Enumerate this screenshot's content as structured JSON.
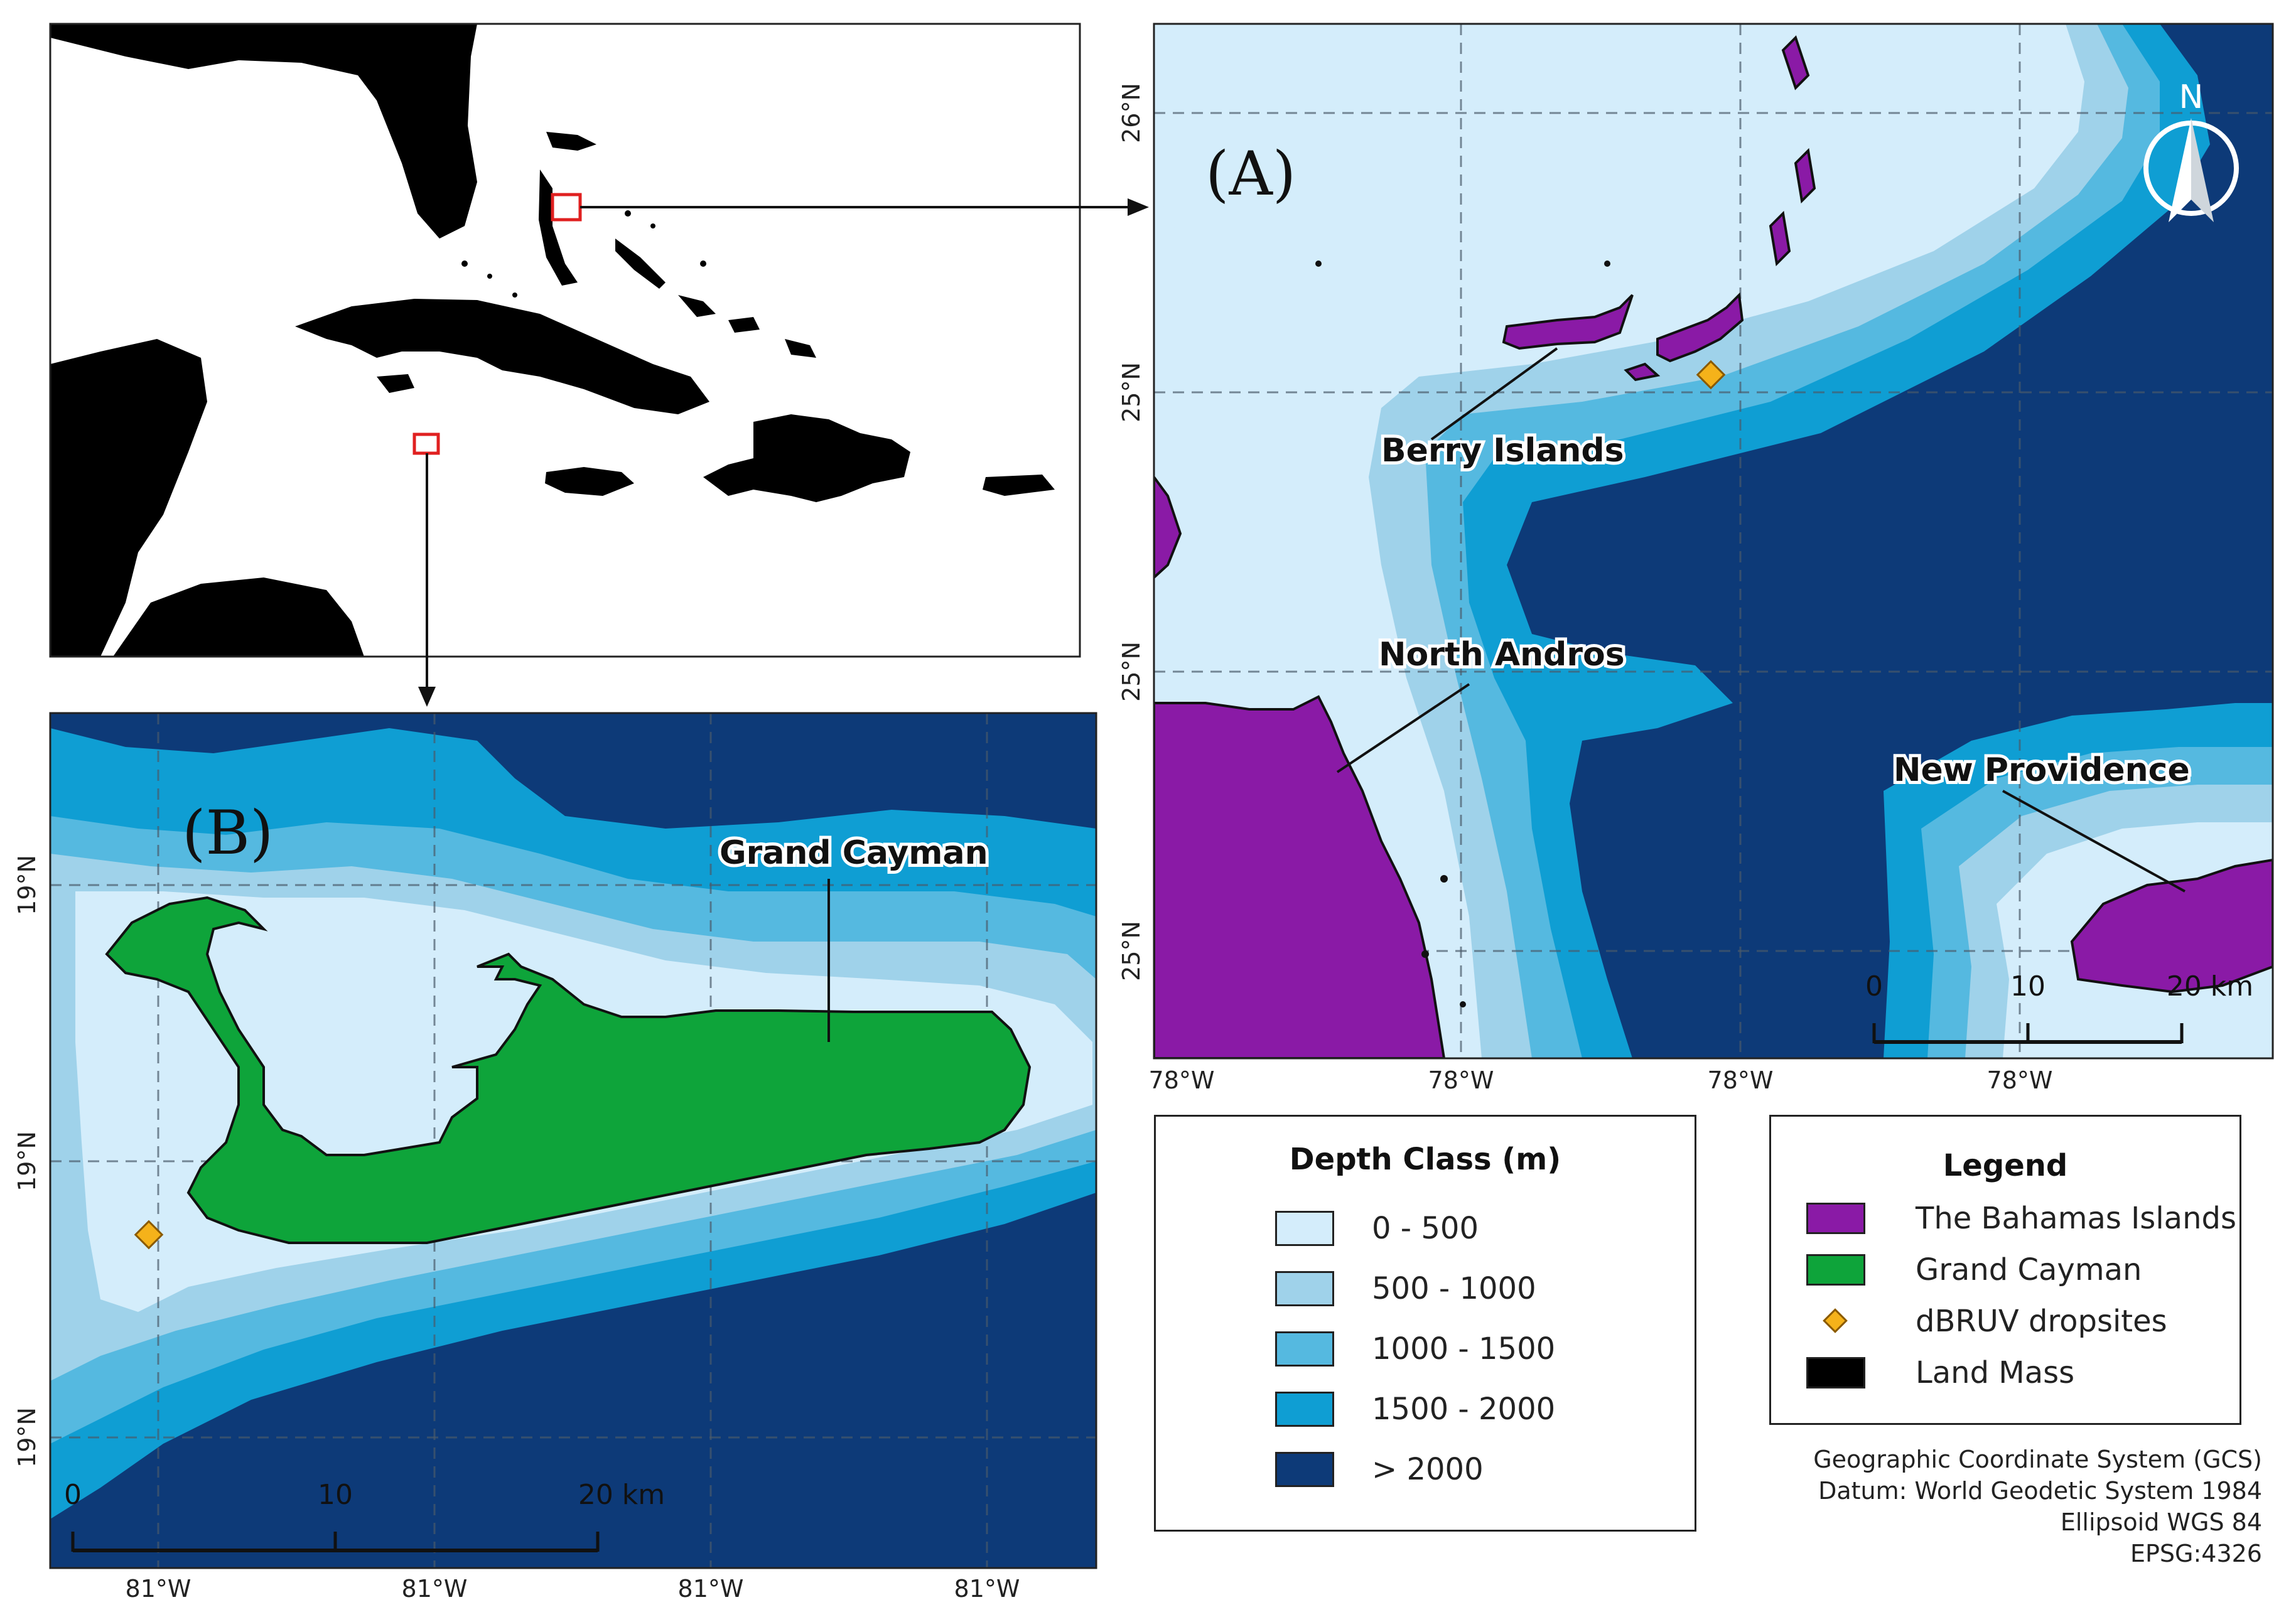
{
  "panel_a": {
    "letter": "(A)",
    "places": {
      "berry": "Berry Islands",
      "andros": "North Andros",
      "providence": "New Providence"
    },
    "lat_labels": [
      "26°N",
      "25°N",
      "25°N",
      "25°N"
    ],
    "lon_labels": [
      "78°W",
      "78°W",
      "78°W",
      "78°W"
    ],
    "scale_ticks": [
      "0",
      "10",
      "20 km"
    ],
    "north": "N"
  },
  "panel_b": {
    "letter": "(B)",
    "place": "Grand Cayman",
    "lat_labels": [
      "19°N",
      "19°N",
      "19°N"
    ],
    "lon_labels": [
      "81°W",
      "81°W",
      "81°W",
      "81°W"
    ],
    "scale_ticks": [
      "0",
      "10",
      "20 km"
    ]
  },
  "depth_legend": {
    "title": "Depth Class (m)",
    "classes": [
      {
        "label": "0 - 500",
        "color": "#d4edfb"
      },
      {
        "label": "500 - 1000",
        "color": "#9fd2ea"
      },
      {
        "label": "1000 - 1500",
        "color": "#55b9e0"
      },
      {
        "label": "1500 - 2000",
        "color": "#0f9ed3"
      },
      {
        "label": "> 2000",
        "color": "#0d3a78"
      }
    ]
  },
  "legend": {
    "title": "Legend",
    "items": [
      {
        "label": "The Bahamas Islands",
        "color": "#8a1aa6"
      },
      {
        "label": "Grand Cayman",
        "color": "#0ea43a"
      },
      {
        "label": "dBRUV dropsites",
        "color": "#f5b21a"
      },
      {
        "label": "Land Mass",
        "color": "#000000"
      }
    ]
  },
  "crs": [
    "Geographic Coordinate System (GCS)",
    "Datum: World Geodetic System 1984",
    "Ellipsoid WGS 84",
    "EPSG:4326"
  ]
}
